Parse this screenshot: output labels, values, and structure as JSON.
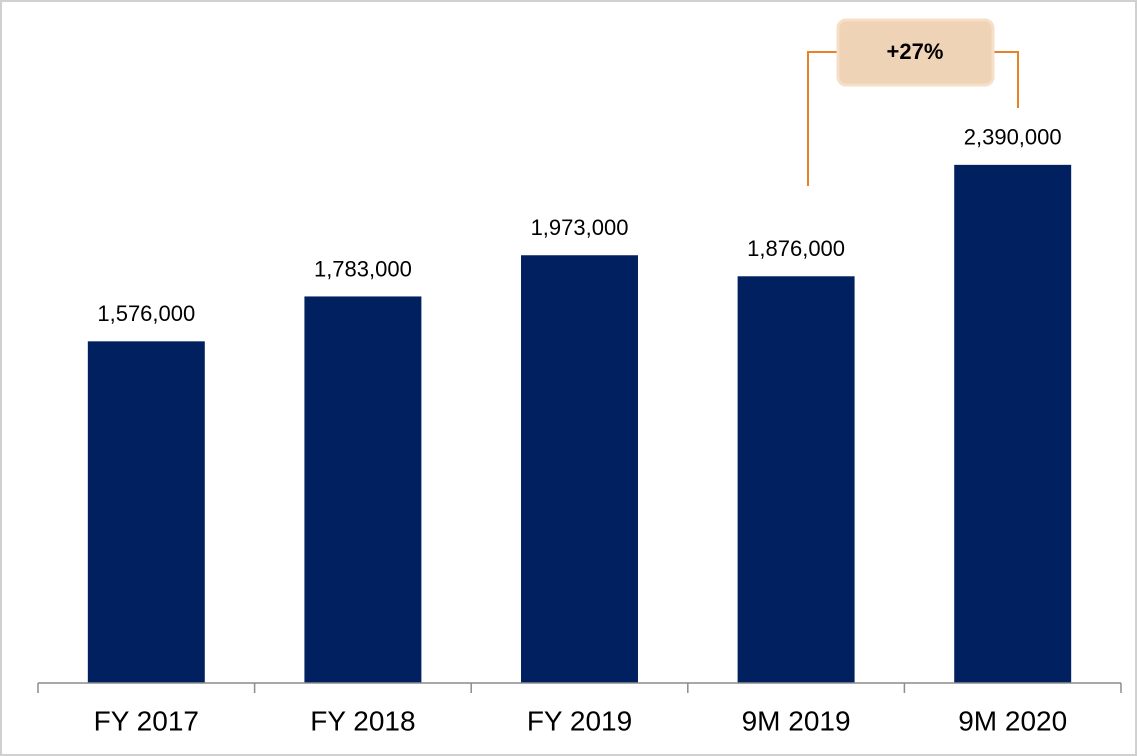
{
  "chart_data": {
    "type": "bar",
    "categories": [
      "FY 2017",
      "FY 2018",
      "FY 2019",
      "9M 2019",
      "9M 2020"
    ],
    "values": [
      1576000,
      1783000,
      1973000,
      1876000,
      2390000
    ],
    "value_labels": [
      "1,576,000",
      "1,783,000",
      "1,973,000",
      "1,876,000",
      "2,390,000"
    ],
    "color": "#002060",
    "ylim": [
      0,
      2500000
    ],
    "annotation": "+27%"
  }
}
